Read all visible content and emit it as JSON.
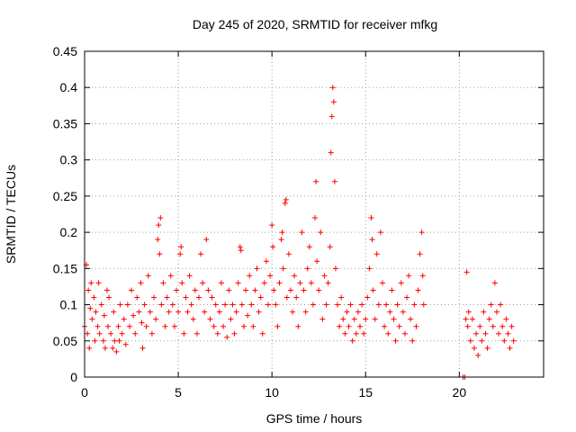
{
  "chart_data": {
    "type": "scatter",
    "title": "Day 245 of 2020, SRMTID for receiver mfkg",
    "xlabel": "GPS time / hours",
    "ylabel": "SRMTID / TECUs",
    "xlim": [
      0,
      24.5
    ],
    "ylim": [
      0,
      0.45
    ],
    "x_ticks": [
      0,
      5,
      10,
      15,
      20
    ],
    "x_tick_labels": [
      "0",
      "5",
      "10",
      "15",
      "20"
    ],
    "y_ticks": [
      0,
      0.05,
      0.1,
      0.15,
      0.2,
      0.25,
      0.3,
      0.35,
      0.4,
      0.45
    ],
    "y_tick_labels": [
      "0",
      "0.05",
      "0.1",
      "0.15",
      "0.2",
      "0.25",
      "0.3",
      "0.35",
      "0.4",
      "0.45"
    ],
    "grid": true,
    "marker": "+",
    "color": "#ff0000",
    "series": [
      {
        "name": "SRMTID",
        "points": [
          [
            0.0,
            0.07
          ],
          [
            0.1,
            0.155
          ],
          [
            0.15,
            0.06
          ],
          [
            0.2,
            0.12
          ],
          [
            0.25,
            0.04
          ],
          [
            0.3,
            0.095
          ],
          [
            0.35,
            0.13
          ],
          [
            0.4,
            0.08
          ],
          [
            0.5,
            0.11
          ],
          [
            0.55,
            0.05
          ],
          [
            0.6,
            0.09
          ],
          [
            0.7,
            0.07
          ],
          [
            0.75,
            0.13
          ],
          [
            0.8,
            0.06
          ],
          [
            0.9,
            0.1
          ],
          [
            1.0,
            0.05
          ],
          [
            1.05,
            0.085
          ],
          [
            1.1,
            0.04
          ],
          [
            1.2,
            0.12
          ],
          [
            1.25,
            0.07
          ],
          [
            1.3,
            0.11
          ],
          [
            1.4,
            0.06
          ],
          [
            1.5,
            0.04
          ],
          [
            1.55,
            0.09
          ],
          [
            1.6,
            0.05
          ],
          [
            1.7,
            0.035
          ],
          [
            1.8,
            0.07
          ],
          [
            1.85,
            0.05
          ],
          [
            1.9,
            0.1
          ],
          [
            2.0,
            0.06
          ],
          [
            2.1,
            0.08
          ],
          [
            2.2,
            0.045
          ],
          [
            2.3,
            0.1
          ],
          [
            2.4,
            0.07
          ],
          [
            2.5,
            0.12
          ],
          [
            2.6,
            0.085
          ],
          [
            2.7,
            0.06
          ],
          [
            2.8,
            0.11
          ],
          [
            2.9,
            0.09
          ],
          [
            3.0,
            0.13
          ],
          [
            3.05,
            0.075
          ],
          [
            3.1,
            0.04
          ],
          [
            3.2,
            0.1
          ],
          [
            3.3,
            0.07
          ],
          [
            3.4,
            0.14
          ],
          [
            3.5,
            0.09
          ],
          [
            3.6,
            0.06
          ],
          [
            3.7,
            0.11
          ],
          [
            3.8,
            0.08
          ],
          [
            3.9,
            0.19
          ],
          [
            3.95,
            0.21
          ],
          [
            4.0,
            0.17
          ],
          [
            4.05,
            0.22
          ],
          [
            4.1,
            0.1
          ],
          [
            4.2,
            0.13
          ],
          [
            4.3,
            0.07
          ],
          [
            4.4,
            0.11
          ],
          [
            4.5,
            0.09
          ],
          [
            4.6,
            0.14
          ],
          [
            4.7,
            0.1
          ],
          [
            4.8,
            0.07
          ],
          [
            4.9,
            0.12
          ],
          [
            5.0,
            0.09
          ],
          [
            5.1,
            0.17
          ],
          [
            5.15,
            0.18
          ],
          [
            5.2,
            0.13
          ],
          [
            5.3,
            0.06
          ],
          [
            5.4,
            0.11
          ],
          [
            5.5,
            0.09
          ],
          [
            5.6,
            0.14
          ],
          [
            5.7,
            0.1
          ],
          [
            5.8,
            0.08
          ],
          [
            5.9,
            0.12
          ],
          [
            6.0,
            0.06
          ],
          [
            6.1,
            0.11
          ],
          [
            6.2,
            0.17
          ],
          [
            6.3,
            0.13
          ],
          [
            6.4,
            0.09
          ],
          [
            6.5,
            0.19
          ],
          [
            6.6,
            0.12
          ],
          [
            6.7,
            0.08
          ],
          [
            6.8,
            0.11
          ],
          [
            6.9,
            0.07
          ],
          [
            7.0,
            0.1
          ],
          [
            7.1,
            0.06
          ],
          [
            7.2,
            0.09
          ],
          [
            7.3,
            0.13
          ],
          [
            7.4,
            0.07
          ],
          [
            7.5,
            0.1
          ],
          [
            7.6,
            0.055
          ],
          [
            7.7,
            0.12
          ],
          [
            7.8,
            0.08
          ],
          [
            7.9,
            0.1
          ],
          [
            8.0,
            0.06
          ],
          [
            8.1,
            0.09
          ],
          [
            8.2,
            0.13
          ],
          [
            8.3,
            0.18
          ],
          [
            8.35,
            0.175
          ],
          [
            8.4,
            0.1
          ],
          [
            8.5,
            0.07
          ],
          [
            8.6,
            0.12
          ],
          [
            8.7,
            0.085
          ],
          [
            8.8,
            0.14
          ],
          [
            8.9,
            0.1
          ],
          [
            9.0,
            0.07
          ],
          [
            9.1,
            0.12
          ],
          [
            9.2,
            0.15
          ],
          [
            9.3,
            0.09
          ],
          [
            9.4,
            0.11
          ],
          [
            9.5,
            0.06
          ],
          [
            9.6,
            0.13
          ],
          [
            9.7,
            0.16
          ],
          [
            9.8,
            0.1
          ],
          [
            9.9,
            0.14
          ],
          [
            10.0,
            0.21
          ],
          [
            10.05,
            0.18
          ],
          [
            10.1,
            0.12
          ],
          [
            10.2,
            0.1
          ],
          [
            10.3,
            0.07
          ],
          [
            10.4,
            0.13
          ],
          [
            10.5,
            0.19
          ],
          [
            10.55,
            0.2
          ],
          [
            10.6,
            0.15
          ],
          [
            10.7,
            0.24
          ],
          [
            10.75,
            0.245
          ],
          [
            10.8,
            0.11
          ],
          [
            10.9,
            0.17
          ],
          [
            11.0,
            0.12
          ],
          [
            11.1,
            0.09
          ],
          [
            11.2,
            0.14
          ],
          [
            11.3,
            0.11
          ],
          [
            11.4,
            0.07
          ],
          [
            11.5,
            0.13
          ],
          [
            11.6,
            0.2
          ],
          [
            11.7,
            0.12
          ],
          [
            11.8,
            0.09
          ],
          [
            11.9,
            0.15
          ],
          [
            12.0,
            0.18
          ],
          [
            12.1,
            0.13
          ],
          [
            12.2,
            0.1
          ],
          [
            12.3,
            0.22
          ],
          [
            12.35,
            0.27
          ],
          [
            12.4,
            0.16
          ],
          [
            12.5,
            0.12
          ],
          [
            12.6,
            0.2
          ],
          [
            12.7,
            0.08
          ],
          [
            12.8,
            0.14
          ],
          [
            12.9,
            0.1
          ],
          [
            13.0,
            0.13
          ],
          [
            13.1,
            0.18
          ],
          [
            13.15,
            0.31
          ],
          [
            13.2,
            0.36
          ],
          [
            13.25,
            0.4
          ],
          [
            13.3,
            0.38
          ],
          [
            13.35,
            0.27
          ],
          [
            13.4,
            0.15
          ],
          [
            13.5,
            0.1
          ],
          [
            13.6,
            0.07
          ],
          [
            13.7,
            0.11
          ],
          [
            13.8,
            0.08
          ],
          [
            13.9,
            0.06
          ],
          [
            14.0,
            0.09
          ],
          [
            14.1,
            0.07
          ],
          [
            14.2,
            0.1
          ],
          [
            14.3,
            0.05
          ],
          [
            14.4,
            0.08
          ],
          [
            14.5,
            0.06
          ],
          [
            14.6,
            0.09
          ],
          [
            14.7,
            0.07
          ],
          [
            14.8,
            0.1
          ],
          [
            14.9,
            0.06
          ],
          [
            15.0,
            0.08
          ],
          [
            15.1,
            0.11
          ],
          [
            15.2,
            0.15
          ],
          [
            15.3,
            0.22
          ],
          [
            15.35,
            0.19
          ],
          [
            15.4,
            0.12
          ],
          [
            15.5,
            0.08
          ],
          [
            15.6,
            0.17
          ],
          [
            15.7,
            0.1
          ],
          [
            15.8,
            0.2
          ],
          [
            15.9,
            0.13
          ],
          [
            16.0,
            0.07
          ],
          [
            16.1,
            0.1
          ],
          [
            16.2,
            0.06
          ],
          [
            16.3,
            0.09
          ],
          [
            16.4,
            0.12
          ],
          [
            16.5,
            0.08
          ],
          [
            16.6,
            0.05
          ],
          [
            16.7,
            0.1
          ],
          [
            16.8,
            0.07
          ],
          [
            16.9,
            0.13
          ],
          [
            17.0,
            0.09
          ],
          [
            17.1,
            0.06
          ],
          [
            17.2,
            0.11
          ],
          [
            17.3,
            0.14
          ],
          [
            17.4,
            0.08
          ],
          [
            17.5,
            0.05
          ],
          [
            17.6,
            0.1
          ],
          [
            17.7,
            0.07
          ],
          [
            17.8,
            0.12
          ],
          [
            17.9,
            0.17
          ],
          [
            18.0,
            0.2
          ],
          [
            18.05,
            0.14
          ],
          [
            18.1,
            0.1
          ],
          [
            20.2,
            0.0
          ],
          [
            20.3,
            0.0
          ],
          [
            20.35,
            0.08
          ],
          [
            20.4,
            0.145
          ],
          [
            20.45,
            0.07
          ],
          [
            20.5,
            0.09
          ],
          [
            20.6,
            0.05
          ],
          [
            20.7,
            0.08
          ],
          [
            20.8,
            0.04
          ],
          [
            20.9,
            0.06
          ],
          [
            21.0,
            0.03
          ],
          [
            21.1,
            0.07
          ],
          [
            21.2,
            0.05
          ],
          [
            21.3,
            0.09
          ],
          [
            21.4,
            0.06
          ],
          [
            21.5,
            0.04
          ],
          [
            21.6,
            0.08
          ],
          [
            21.7,
            0.1
          ],
          [
            21.8,
            0.07
          ],
          [
            21.9,
            0.13
          ],
          [
            22.0,
            0.09
          ],
          [
            22.1,
            0.06
          ],
          [
            22.2,
            0.1
          ],
          [
            22.3,
            0.07
          ],
          [
            22.4,
            0.05
          ],
          [
            22.5,
            0.08
          ],
          [
            22.6,
            0.06
          ],
          [
            22.7,
            0.04
          ],
          [
            22.8,
            0.07
          ],
          [
            22.9,
            0.05
          ]
        ]
      }
    ]
  }
}
